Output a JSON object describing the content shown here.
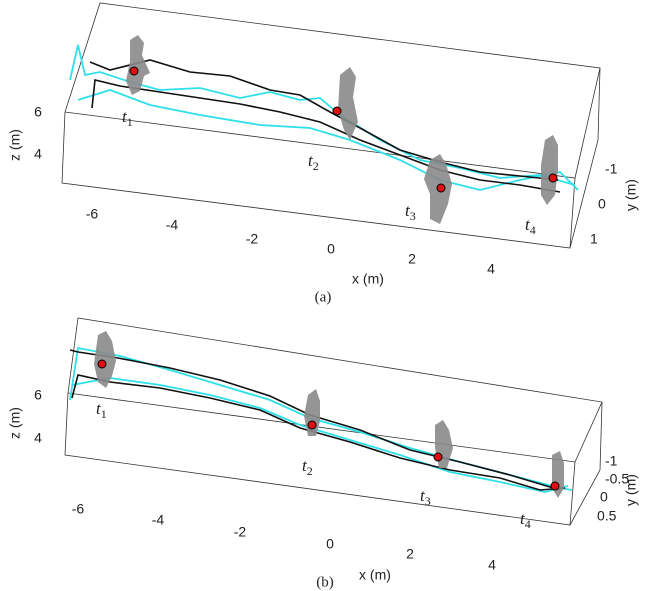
{
  "panels": [
    {
      "caption": "(a)",
      "x_label": "x (m)",
      "y_label": "y (m)",
      "z_label": "z (m)",
      "x_ticks": [
        "-6",
        "-4",
        "-2",
        "0",
        "2",
        "4"
      ],
      "y_ticks": [
        "-1",
        "0",
        "1"
      ],
      "z_ticks": [
        "6",
        "4"
      ],
      "time_labels": [
        {
          "base": "t",
          "sub": "1"
        },
        {
          "base": "t",
          "sub": "2"
        },
        {
          "base": "t",
          "sub": "3"
        },
        {
          "base": "t",
          "sub": "4"
        }
      ]
    },
    {
      "caption": "(b)",
      "x_label": "x (m)",
      "y_label": "y (m)",
      "z_label": "z (m)",
      "x_ticks": [
        "-6",
        "-4",
        "-2",
        "0",
        "2",
        "4"
      ],
      "y_ticks": [
        "-1",
        "-0.5",
        "0",
        "0.5"
      ],
      "z_ticks": [
        "6",
        "4"
      ],
      "time_labels": [
        {
          "base": "t",
          "sub": "1"
        },
        {
          "base": "t",
          "sub": "2"
        },
        {
          "base": "t",
          "sub": "3"
        },
        {
          "base": "t",
          "sub": "4"
        }
      ]
    }
  ]
}
